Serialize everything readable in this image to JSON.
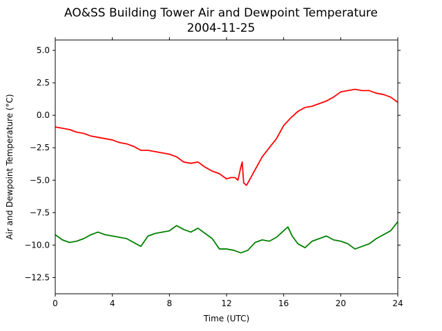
{
  "chart_data": {
    "type": "line",
    "title": "AO&SS Building Tower Air and Dewpoint Temperature",
    "subtitle": "2004-11-25",
    "xlabel": "Time (UTC)",
    "ylabel": "Air and Dewpoint Temperature (°C)",
    "xlim": [
      0,
      24
    ],
    "ylim": [
      -13.75,
      5.8
    ],
    "x_ticks": [
      0,
      4,
      8,
      12,
      16,
      20,
      24
    ],
    "x_tick_labels": [
      "0",
      "4",
      "8",
      "12",
      "16",
      "20",
      "24"
    ],
    "y_ticks": [
      5.0,
      2.5,
      0.0,
      -2.5,
      -5.0,
      -7.5,
      -10.0,
      -12.5
    ],
    "y_tick_labels": [
      "5.0",
      "2.5",
      "0.0",
      "−2.5",
      "−5.0",
      "−7.5",
      "−10.0",
      "−12.5"
    ],
    "grid": false,
    "series": [
      {
        "color": "#ff0000",
        "x": [
          0,
          0.5,
          1,
          1.5,
          2,
          2.5,
          3,
          3.5,
          4,
          4.5,
          5,
          5.5,
          6,
          6.5,
          7,
          7.5,
          8,
          8.5,
          9,
          9.5,
          10,
          10.5,
          11,
          11.5,
          12,
          12.3,
          12.6,
          12.8,
          13.0,
          13.1,
          13.2,
          13.4,
          13.6,
          14,
          14.5,
          15,
          15.5,
          16,
          16.5,
          17,
          17.5,
          18,
          18.5,
          19,
          19.5,
          20,
          20.5,
          21,
          21.5,
          22,
          22.5,
          23,
          23.5,
          24
        ],
        "y": [
          -0.9,
          -1.0,
          -1.1,
          -1.3,
          -1.4,
          -1.6,
          -1.7,
          -1.8,
          -1.9,
          -2.1,
          -2.2,
          -2.4,
          -2.7,
          -2.7,
          -2.8,
          -2.9,
          -3.0,
          -3.2,
          -3.6,
          -3.7,
          -3.6,
          -4.0,
          -4.3,
          -4.5,
          -4.9,
          -4.8,
          -4.8,
          -5.0,
          -4.0,
          -3.6,
          -5.2,
          -5.4,
          -5.0,
          -4.2,
          -3.2,
          -2.5,
          -1.8,
          -0.8,
          -0.2,
          0.3,
          0.6,
          0.7,
          0.9,
          1.1,
          1.4,
          1.8,
          1.9,
          2.0,
          1.9,
          1.9,
          1.7,
          1.6,
          1.4,
          1.0
        ]
      },
      {
        "color": "#008000",
        "x": [
          0,
          0.5,
          1,
          1.5,
          2,
          2.5,
          3,
          3.5,
          4,
          4.5,
          5,
          5.5,
          6,
          6.5,
          7,
          7.5,
          8,
          8.5,
          9,
          9.5,
          10,
          10.5,
          11,
          11.5,
          12,
          12.5,
          13,
          13.5,
          14,
          14.5,
          15,
          15.5,
          16,
          16.3,
          16.6,
          17,
          17.5,
          18,
          18.5,
          19,
          19.5,
          20,
          20.5,
          21,
          21.5,
          22,
          22.5,
          23,
          23.5,
          24
        ],
        "y": [
          -9.2,
          -9.6,
          -9.8,
          -9.7,
          -9.5,
          -9.2,
          -9.0,
          -9.2,
          -9.3,
          -9.4,
          -9.5,
          -9.8,
          -10.1,
          -9.3,
          -9.1,
          -9.0,
          -8.9,
          -8.5,
          -8.8,
          -9.0,
          -8.7,
          -9.1,
          -9.5,
          -10.3,
          -10.3,
          -10.4,
          -10.6,
          -10.4,
          -9.8,
          -9.6,
          -9.7,
          -9.4,
          -8.9,
          -8.6,
          -9.3,
          -9.9,
          -10.2,
          -9.7,
          -9.5,
          -9.3,
          -9.6,
          -9.7,
          -9.9,
          -10.3,
          -10.1,
          -9.9,
          -9.5,
          -9.2,
          -8.9,
          -8.2
        ]
      }
    ]
  }
}
